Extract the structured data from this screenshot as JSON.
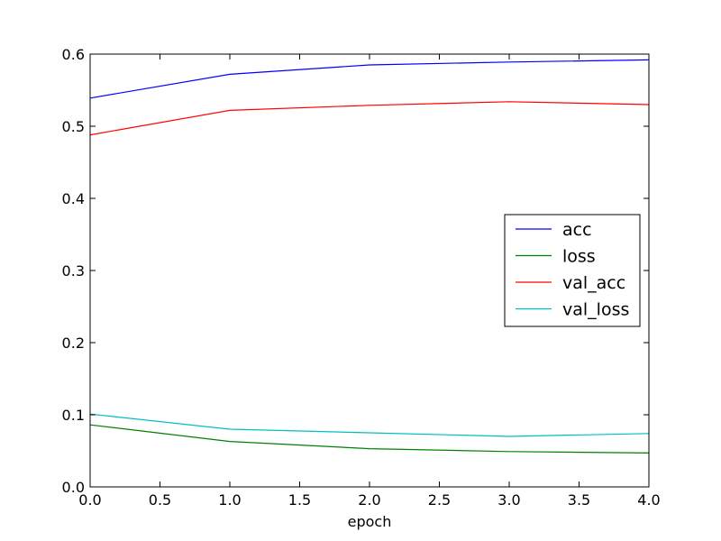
{
  "chart_data": {
    "type": "line",
    "title": "",
    "xlabel": "epoch",
    "ylabel": "",
    "x": [
      0,
      1,
      2,
      3,
      4
    ],
    "xlim": [
      0.0,
      4.0
    ],
    "ylim": [
      0.0,
      0.6
    ],
    "xticks": [
      "0.0",
      "0.5",
      "1.0",
      "1.5",
      "2.0",
      "2.5",
      "3.0",
      "3.5",
      "4.0"
    ],
    "yticks": [
      "0.0",
      "0.1",
      "0.2",
      "0.3",
      "0.4",
      "0.5",
      "0.6"
    ],
    "grid": false,
    "legend_position": "center-right",
    "series": [
      {
        "name": "acc",
        "color": "#0000ff",
        "values": [
          0.539,
          0.572,
          0.585,
          0.589,
          0.592
        ]
      },
      {
        "name": "loss",
        "color": "#008000",
        "values": [
          0.086,
          0.063,
          0.053,
          0.049,
          0.047
        ]
      },
      {
        "name": "val_acc",
        "color": "#ff0000",
        "values": [
          0.488,
          0.522,
          0.529,
          0.534,
          0.53
        ]
      },
      {
        "name": "val_loss",
        "color": "#00bfbf",
        "values": [
          0.101,
          0.08,
          0.075,
          0.07,
          0.074
        ]
      }
    ]
  }
}
